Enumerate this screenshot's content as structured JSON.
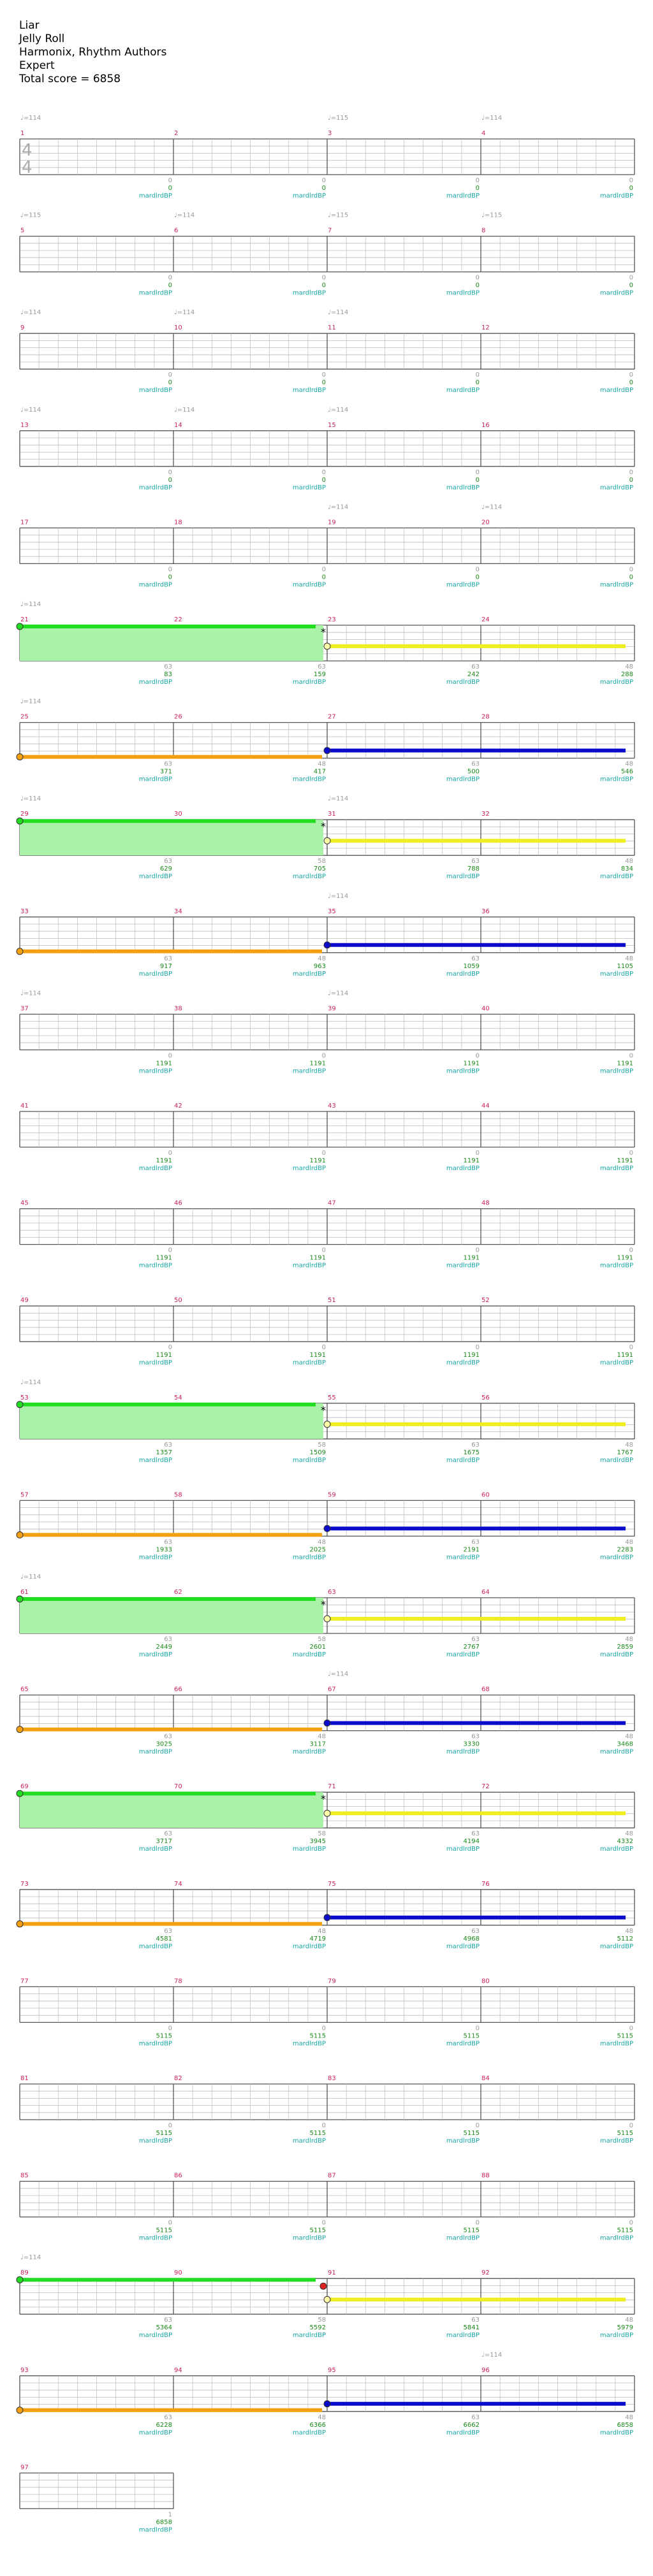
{
  "song": {
    "title": "Liar",
    "artist": "Jelly Roll",
    "charter": "Harmonix, Rhythm Authors",
    "difficulty": "Expert",
    "total_score": "Total score = 6858"
  },
  "time_signature": {
    "numerator": "4",
    "denominator": "4"
  },
  "tempo_label": "♩=114",
  "tempo_label_alt": "♩=115",
  "multiplier_label": "mardlrdBP",
  "colors": {
    "measure_number": "#cc2255",
    "score": "#1a8a1a",
    "multiplier": "#19a6a6",
    "tempo": "#999999",
    "staff_line": "#bbbbbb",
    "staff_border": "#555555",
    "green_bar": "#22dd22",
    "green_fill": "#aaf2a8",
    "yellow_bar": "#eeee22",
    "orange_bar": "#f5a010",
    "blue_bar": "#0b0bcc",
    "red_gem": "#dd2222"
  },
  "rows": [
    {
      "measures": [
        "1",
        "2",
        "3",
        "4"
      ],
      "tempos": [
        {
          "pos": 0,
          "label": "♩=114"
        },
        {
          "pos": 2,
          "label": "♩=115"
        },
        {
          "pos": 3,
          "label": "♩=114"
        }
      ],
      "small": [
        "0",
        "0",
        "0",
        "0"
      ],
      "scores": [
        "0",
        "0",
        "0",
        "0"
      ],
      "timesig": true
    },
    {
      "measures": [
        "5",
        "6",
        "7",
        "8"
      ],
      "tempos": [
        {
          "pos": 0,
          "label": "♩=115"
        },
        {
          "pos": 1,
          "label": "♩=114"
        },
        {
          "pos": 2,
          "label": "♩=115"
        },
        {
          "pos": 3,
          "label": "♩=115"
        }
      ],
      "small": [
        "0",
        "0",
        "0",
        "0"
      ],
      "scores": [
        "0",
        "0",
        "0",
        "0"
      ]
    },
    {
      "measures": [
        "9",
        "10",
        "11",
        "12"
      ],
      "tempos": [
        {
          "pos": 0,
          "label": "♩=114"
        },
        {
          "pos": 1,
          "label": "♩=114"
        },
        {
          "pos": 2,
          "label": "♩=114"
        }
      ],
      "small": [
        "0",
        "0",
        "0",
        "0"
      ],
      "scores": [
        "0",
        "0",
        "0",
        "0"
      ]
    },
    {
      "measures": [
        "13",
        "14",
        "15",
        "16"
      ],
      "tempos": [
        {
          "pos": 0,
          "label": "♩=114"
        },
        {
          "pos": 1,
          "label": "♩=114"
        },
        {
          "pos": 2,
          "label": "♩=114"
        }
      ],
      "small": [
        "0",
        "0",
        "0",
        "0"
      ],
      "scores": [
        "0",
        "0",
        "0",
        "0"
      ]
    },
    {
      "measures": [
        "17",
        "18",
        "19",
        "20"
      ],
      "tempos": [
        {
          "pos": 2,
          "label": "♩=114"
        },
        {
          "pos": 3,
          "label": "♩=114"
        }
      ],
      "small": [
        "0",
        "0",
        "0",
        "0"
      ],
      "scores": [
        "0",
        "0",
        "0",
        "0"
      ]
    },
    {
      "measures": [
        "21",
        "22",
        "23",
        "24"
      ],
      "tempos": [
        {
          "pos": 0,
          "label": "♩=114"
        }
      ],
      "small": [
        "63",
        "63",
        "63",
        "48"
      ],
      "scores": [
        "83",
        "159",
        "242",
        "288"
      ],
      "pattern": "green-yellow"
    },
    {
      "measures": [
        "25",
        "26",
        "27",
        "28"
      ],
      "tempos": [
        {
          "pos": 0,
          "label": "♩=114"
        }
      ],
      "small": [
        "63",
        "48",
        "63",
        "48"
      ],
      "scores": [
        "371",
        "417",
        "500",
        "546"
      ],
      "pattern": "orange-blue"
    },
    {
      "measures": [
        "29",
        "30",
        "31",
        "32"
      ],
      "tempos": [
        {
          "pos": 0,
          "label": "♩=114"
        },
        {
          "pos": 2,
          "label": "♩=114"
        }
      ],
      "small": [
        "63",
        "58",
        "63",
        "48"
      ],
      "scores": [
        "629",
        "705",
        "788",
        "834"
      ],
      "pattern": "green-yellow"
    },
    {
      "measures": [
        "33",
        "34",
        "35",
        "36"
      ],
      "tempos": [
        {
          "pos": 2,
          "label": "♩=114"
        }
      ],
      "small": [
        "63",
        "48",
        "63",
        "48"
      ],
      "scores": [
        "917",
        "963",
        "1059",
        "1105"
      ],
      "pattern": "orange-blue"
    },
    {
      "measures": [
        "37",
        "38",
        "39",
        "40"
      ],
      "tempos": [
        {
          "pos": 0,
          "label": "♩=114"
        },
        {
          "pos": 2,
          "label": "♩=114"
        }
      ],
      "small": [
        "0",
        "0",
        "0",
        "0"
      ],
      "scores": [
        "1191",
        "1191",
        "1191",
        "1191"
      ]
    },
    {
      "measures": [
        "41",
        "42",
        "43",
        "44"
      ],
      "tempos": [],
      "small": [
        "0",
        "0",
        "0",
        "0"
      ],
      "scores": [
        "1191",
        "1191",
        "1191",
        "1191"
      ]
    },
    {
      "measures": [
        "45",
        "46",
        "47",
        "48"
      ],
      "tempos": [],
      "small": [
        "0",
        "0",
        "0",
        "0"
      ],
      "scores": [
        "1191",
        "1191",
        "1191",
        "1191"
      ]
    },
    {
      "measures": [
        "49",
        "50",
        "51",
        "52"
      ],
      "tempos": [],
      "small": [
        "0",
        "0",
        "0",
        "0"
      ],
      "scores": [
        "1191",
        "1191",
        "1191",
        "1191"
      ]
    },
    {
      "measures": [
        "53",
        "54",
        "55",
        "56"
      ],
      "tempos": [
        {
          "pos": 0,
          "label": "♩=114"
        }
      ],
      "small": [
        "63",
        "58",
        "63",
        "48"
      ],
      "scores": [
        "1357",
        "1509",
        "1675",
        "1767"
      ],
      "pattern": "green-yellow"
    },
    {
      "measures": [
        "57",
        "58",
        "59",
        "60"
      ],
      "tempos": [],
      "small": [
        "63",
        "48",
        "63",
        "48"
      ],
      "scores": [
        "1933",
        "2025",
        "2191",
        "2283"
      ],
      "pattern": "orange-blue"
    },
    {
      "measures": [
        "61",
        "62",
        "63",
        "64"
      ],
      "tempos": [
        {
          "pos": 0,
          "label": "♩=114"
        }
      ],
      "small": [
        "63",
        "58",
        "63",
        "48"
      ],
      "scores": [
        "2449",
        "2601",
        "2767",
        "2859"
      ],
      "pattern": "green-yellow"
    },
    {
      "measures": [
        "65",
        "66",
        "67",
        "68"
      ],
      "tempos": [
        {
          "pos": 2,
          "label": "♩=114"
        }
      ],
      "small": [
        "63",
        "48",
        "63",
        "48"
      ],
      "scores": [
        "3025",
        "3117",
        "3330",
        "3468"
      ],
      "pattern": "orange-blue"
    },
    {
      "measures": [
        "69",
        "70",
        "71",
        "72"
      ],
      "tempos": [],
      "small": [
        "63",
        "58",
        "63",
        "48"
      ],
      "scores": [
        "3717",
        "3945",
        "4194",
        "4332"
      ],
      "pattern": "green-yellow"
    },
    {
      "measures": [
        "73",
        "74",
        "75",
        "76"
      ],
      "tempos": [],
      "small": [
        "63",
        "48",
        "63",
        "48"
      ],
      "scores": [
        "4581",
        "4719",
        "4968",
        "5112"
      ],
      "pattern": "orange-blue"
    },
    {
      "measures": [
        "77",
        "78",
        "79",
        "80"
      ],
      "tempos": [],
      "small": [
        "0",
        "0",
        "0",
        "0"
      ],
      "scores": [
        "5115",
        "5115",
        "5115",
        "5115"
      ]
    },
    {
      "measures": [
        "81",
        "82",
        "83",
        "84"
      ],
      "tempos": [],
      "small": [
        "0",
        "0",
        "0",
        "0"
      ],
      "scores": [
        "5115",
        "5115",
        "5115",
        "5115"
      ]
    },
    {
      "measures": [
        "85",
        "86",
        "87",
        "88"
      ],
      "tempos": [],
      "small": [
        "0",
        "0",
        "0",
        "0"
      ],
      "scores": [
        "5115",
        "5115",
        "5115",
        "5115"
      ]
    },
    {
      "measures": [
        "89",
        "90",
        "91",
        "92"
      ],
      "tempos": [
        {
          "pos": 0,
          "label": "♩=114"
        }
      ],
      "small": [
        "63",
        "58",
        "63",
        "48"
      ],
      "scores": [
        "5364",
        "5592",
        "5841",
        "5979"
      ],
      "pattern": "green-yellow-red"
    },
    {
      "measures": [
        "93",
        "94",
        "95",
        "96"
      ],
      "tempos": [
        {
          "pos": 3,
          "label": "♩=114"
        }
      ],
      "small": [
        "63",
        "48",
        "63",
        "48"
      ],
      "scores": [
        "6228",
        "6366",
        "6662",
        "6858"
      ],
      "pattern": "orange-blue"
    },
    {
      "measures": [
        "97"
      ],
      "tempos": [],
      "small": [
        "1"
      ],
      "scores": [
        "6858"
      ]
    }
  ]
}
